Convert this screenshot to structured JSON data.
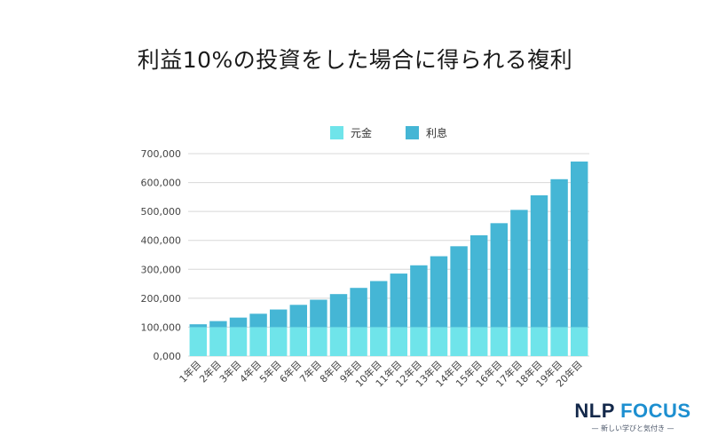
{
  "title": "利益10%の投資をした場合に得られる複利",
  "colors": {
    "principal": "#6fe4ea",
    "interest": "#45b6d5",
    "grid": "#d8d8d8"
  },
  "legend": [
    {
      "label": "元金",
      "color": "#6fe4ea"
    },
    {
      "label": "利息",
      "color": "#45b6d5"
    }
  ],
  "brand": {
    "name_part1": "NLP ",
    "name_part2": "FOCUS",
    "tagline": "— 新しい学びと気付き —"
  },
  "chart_data": {
    "type": "bar",
    "stacked": true,
    "categories": [
      "1年目",
      "2年目",
      "3年目",
      "4年目",
      "5年目",
      "6年目",
      "7年目",
      "8年目",
      "9年目",
      "10年目",
      "11年目",
      "12年目",
      "13年目",
      "14年目",
      "15年目",
      "16年目",
      "17年目",
      "18年目",
      "19年目",
      "20年目"
    ],
    "series": [
      {
        "name": "元金",
        "values": [
          100000,
          100000,
          100000,
          100000,
          100000,
          100000,
          100000,
          100000,
          100000,
          100000,
          100000,
          100000,
          100000,
          100000,
          100000,
          100000,
          100000,
          100000,
          100000,
          100000
        ]
      },
      {
        "name": "利息",
        "values": [
          10000,
          21000,
          33100,
          46410,
          61051,
          77156,
          94872,
          114359,
          135795,
          159374,
          185312,
          213843,
          245227,
          279750,
          317725,
          359497,
          405447,
          455992,
          511591,
          572750
        ]
      }
    ],
    "yticks": [
      "0,000",
      "100,000",
      "200,000",
      "300,000",
      "400,000",
      "500,000",
      "600,000",
      "700,000"
    ],
    "ylim": [
      0,
      700000
    ],
    "grid": true,
    "legend_position": "top-center"
  }
}
